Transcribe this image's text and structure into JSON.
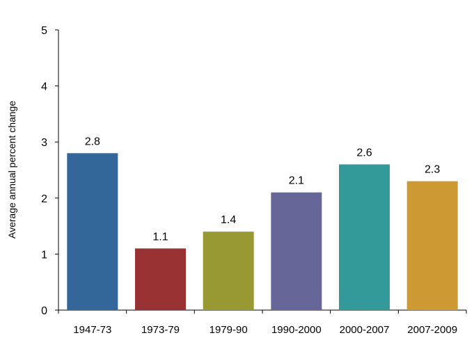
{
  "chart_data": {
    "type": "bar",
    "categories": [
      "1947-73",
      "1973-79",
      "1979-90",
      "1990-2000",
      "2000-2007",
      "2007-2009"
    ],
    "values": [
      2.8,
      1.1,
      1.4,
      2.1,
      2.6,
      2.3
    ],
    "data_labels": [
      "2.8",
      "1.1",
      "1.4",
      "2.1",
      "2.6",
      "2.3"
    ],
    "bar_colors": [
      "#336699",
      "#993333",
      "#999933",
      "#666699",
      "#339999",
      "#CC9933"
    ],
    "title": "",
    "xlabel": "",
    "ylabel": "Average annual percent change",
    "ylim": [
      0,
      5
    ],
    "yticks": [
      "0",
      "1",
      "2",
      "3",
      "4",
      "5"
    ],
    "grid": false,
    "legend": "none"
  }
}
